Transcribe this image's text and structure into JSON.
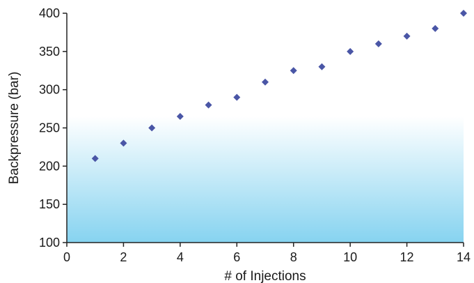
{
  "chart_data": {
    "type": "scatter",
    "title": "",
    "xlabel": "# of Injections",
    "ylabel": "Backpressure (bar)",
    "xlim": [
      0,
      14
    ],
    "ylim": [
      100,
      400
    ],
    "x_ticks": [
      "0",
      "2",
      "4",
      "6",
      "8",
      "10",
      "12",
      "14"
    ],
    "y_ticks": [
      "100",
      "150",
      "200",
      "250",
      "300",
      "350",
      "400"
    ],
    "grid": false,
    "legend": "none",
    "colors": {
      "marker": "#4a56a6",
      "plot_bg_top": "#ffffff",
      "plot_bg_bottom": "#86d3f0"
    },
    "series": [
      {
        "x": [
          1,
          2,
          3,
          4,
          5,
          6,
          7,
          8,
          9,
          10,
          11,
          12,
          13,
          14
        ],
        "y": [
          210,
          230,
          250,
          265,
          280,
          290,
          310,
          325,
          330,
          350,
          360,
          370,
          380,
          400
        ]
      }
    ]
  }
}
